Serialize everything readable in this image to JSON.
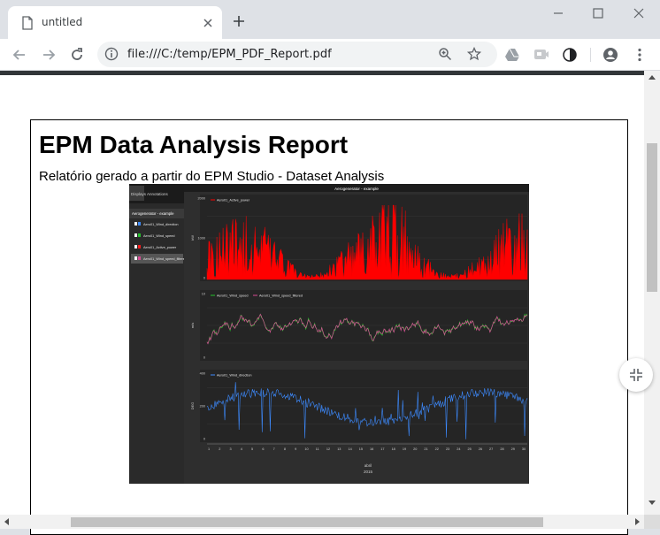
{
  "browser": {
    "tab_title": "untitled",
    "url": "file:///C:/temp/EPM_PDF_Report.pdf"
  },
  "report": {
    "title": "EPM Data Analysis Report",
    "subtitle": "Relatório gerado a partir do EPM Studio - Dataset Analysis"
  },
  "embedded_screenshot": {
    "window_title": "Aerogenerator - example",
    "tabs": [
      "Displays",
      "Annotations"
    ],
    "tree_root": "Aerogenerator - example",
    "tree_items": [
      {
        "label": "Aero01_Wind_direction",
        "color": "#3d8bff"
      },
      {
        "label": "Aero01_Wind_speed",
        "color": "#24c02c"
      },
      {
        "label": "Aero01_Active_power",
        "color": "#ff1a1a"
      },
      {
        "label": "Aero01_Wind_speed_filtered",
        "color": "#d64a94"
      }
    ],
    "chart_data": [
      {
        "type": "area",
        "legend": [
          "Aero01_Active_power"
        ],
        "ylabel": "kW",
        "y_ticks": [
          "2000",
          "1000",
          "0"
        ],
        "color": "#ff0000"
      },
      {
        "type": "line",
        "legend": [
          "Aero01_Wind_speed",
          "Aero01_Wind_speed_filtered"
        ],
        "ylabel": "m/s",
        "y_ticks": [
          "10",
          "0"
        ],
        "colors": [
          "#22c42a",
          "#d64a94"
        ]
      },
      {
        "type": "line",
        "legend": [
          "Aero01_Wind_direction"
        ],
        "ylabel": "DEG",
        "y_ticks": [
          "400",
          "200",
          "0"
        ],
        "color": "#3d8bff"
      }
    ],
    "x_ticks": [
      "1",
      "2",
      "3",
      "4",
      "5",
      "6",
      "7",
      "8",
      "9",
      "10",
      "11",
      "12",
      "13",
      "14",
      "15",
      "16",
      "17",
      "18",
      "19",
      "20",
      "21",
      "22",
      "23",
      "24",
      "25",
      "26",
      "27",
      "28",
      "29",
      "30"
    ],
    "x_label_month": "abril",
    "x_label_year": "2015"
  }
}
